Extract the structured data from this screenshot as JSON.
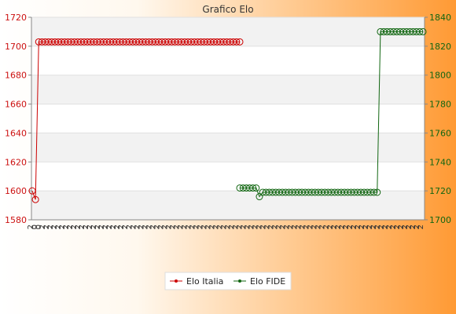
{
  "chart_data": {
    "type": "line",
    "title": "Grafico Elo",
    "y_left": {
      "min": 1580,
      "max": 1720,
      "ticks": [
        1580,
        1600,
        1620,
        1640,
        1660,
        1680,
        1700,
        1720
      ]
    },
    "y_right": {
      "min": 1700,
      "max": 1840,
      "ticks": [
        1700,
        1720,
        1740,
        1760,
        1780,
        1800,
        1820,
        1840
      ]
    },
    "x_tick_labels": [
      "2",
      "0",
      "0",
      "2",
      "2",
      "2",
      "2",
      "2",
      "2",
      "2",
      "2",
      "2",
      "2",
      "2",
      "2",
      "2",
      "2",
      "2",
      "2",
      "2",
      "2",
      "2",
      "2",
      "2",
      "2",
      "2",
      "2",
      "2",
      "2",
      "2",
      "2",
      "2",
      "2",
      "2",
      "2",
      "2",
      "2",
      "2",
      "2",
      "2",
      "2",
      "2",
      "2",
      "2",
      "2",
      "2",
      "2",
      "2",
      "2",
      "2",
      "2",
      "2",
      "2",
      "2",
      "2",
      "2",
      "2",
      "2",
      "2",
      "2",
      "2",
      "2",
      "2",
      "2",
      "2",
      "2",
      "2",
      "2",
      "2",
      "2",
      "2",
      "2",
      "2",
      "2",
      "2",
      "2",
      "2",
      "2",
      "2",
      "2",
      "2",
      "2",
      "2",
      "2",
      "2",
      "2",
      "2",
      "2",
      "2",
      "2",
      "2",
      "2",
      "2",
      "2",
      "2",
      "2",
      "2",
      "2",
      "2",
      "2"
    ],
    "series": [
      {
        "name": "Elo Italia",
        "axis": "left",
        "color": "#cc0000",
        "marker": "diamond-circle",
        "values": [
          1600,
          1594,
          1703,
          1703,
          1703,
          1703,
          1703,
          1703,
          1703,
          1703,
          1703,
          1703,
          1703,
          1703,
          1703,
          1703,
          1703,
          1703,
          1703,
          1703,
          1703,
          1703,
          1703,
          1703,
          1703,
          1703,
          1703,
          1703,
          1703,
          1703,
          1703,
          1703,
          1703,
          1703,
          1703,
          1703,
          1703,
          1703,
          1703,
          1703,
          1703,
          1703,
          1703,
          1703,
          1703,
          1703,
          1703,
          1703,
          1703,
          1703,
          1703,
          1703,
          1703,
          1703,
          1703,
          1703,
          1703,
          1703,
          1703,
          1703,
          1703,
          1703,
          1703,
          1703,
          1703
        ]
      },
      {
        "name": "Elo FIDE",
        "axis": "right",
        "color": "#116611",
        "marker": "circle",
        "values": [
          1722,
          1722,
          1722,
          1722,
          1722,
          1722,
          1716,
          1719,
          1719,
          1719,
          1719,
          1719,
          1719,
          1719,
          1719,
          1719,
          1719,
          1719,
          1719,
          1719,
          1719,
          1719,
          1719,
          1719,
          1719,
          1719,
          1719,
          1719,
          1719,
          1719,
          1719,
          1719,
          1719,
          1719,
          1719,
          1719,
          1719,
          1719,
          1719,
          1719,
          1719,
          1719,
          1719,
          1830,
          1830,
          1830,
          1830,
          1830,
          1830,
          1830,
          1830,
          1830,
          1830,
          1830,
          1830,
          1830,
          1830
        ]
      }
    ],
    "legend": {
      "placement": "bottom-center"
    },
    "grid": true
  }
}
